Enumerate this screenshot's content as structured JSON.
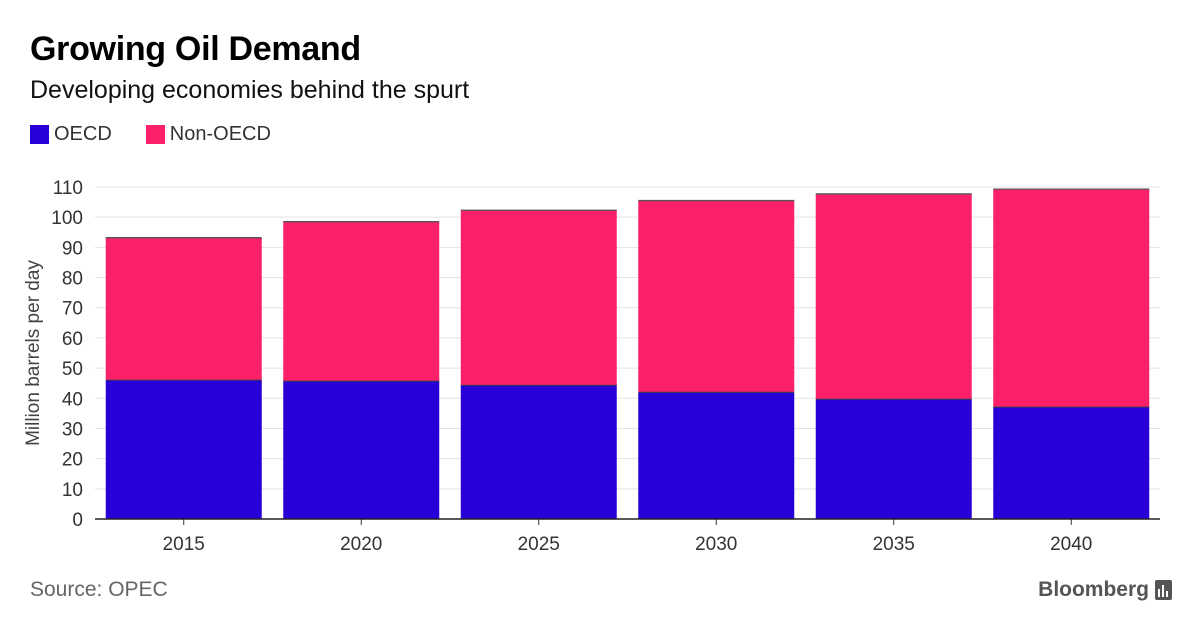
{
  "title": "Growing Oil Demand",
  "subtitle": "Developing economies behind the spurt",
  "source": "Source: OPEC",
  "brand": "Bloomberg",
  "colors": {
    "oecd": "#2800d7",
    "non_oecd": "#fb2067"
  },
  "legend": {
    "oecd": "OECD",
    "non_oecd": "Non-OECD"
  },
  "chart_data": {
    "type": "bar",
    "stacked": true,
    "categories": [
      "2015",
      "2020",
      "2025",
      "2030",
      "2035",
      "2040"
    ],
    "series": [
      {
        "name": "OECD",
        "values": [
          46,
          45.7,
          44.3,
          42,
          39.7,
          37.1
        ]
      },
      {
        "name": "Non-OECD",
        "values": [
          47.2,
          52.8,
          58,
          63.5,
          68,
          72.2
        ]
      }
    ],
    "totals": [
      93.2,
      98.5,
      102.3,
      105.5,
      107.7,
      109.3
    ],
    "ylabel": "Million barrels per day",
    "ylim": [
      0,
      110
    ],
    "yticks": [
      0,
      10,
      20,
      30,
      40,
      50,
      60,
      70,
      80,
      90,
      100,
      110
    ],
    "grid": true,
    "legend_position": "top-left"
  }
}
